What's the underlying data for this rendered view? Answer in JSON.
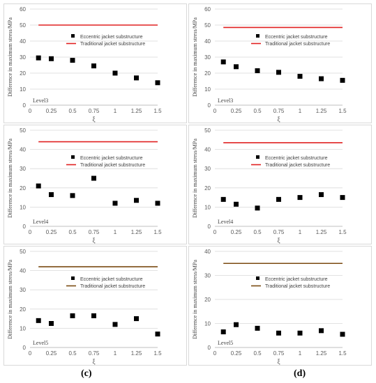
{
  "figure": {
    "col_labels": [
      "(c)",
      "(d)"
    ]
  },
  "legend_labels": {
    "eccentric": "Eccentric jacket substructure",
    "traditional": "Traditional jacket substructure"
  },
  "chart_data": [
    {
      "id": "c-level3",
      "type": "scatter",
      "level_label": "Level3",
      "xlabel": "ξ",
      "ylabel": "Difference in maximum stress/MPa",
      "xlim": [
        0,
        1.5
      ],
      "ylim": [
        0,
        60
      ],
      "y_step": 10,
      "x_ticks": [
        "0",
        "0.25",
        "0.5",
        "0.75",
        "1",
        "1.25",
        "1.5"
      ],
      "grid": true,
      "legend": "right",
      "traditional_color": "#e02020",
      "series": [
        {
          "name": "Eccentric jacket substructure",
          "x": [
            0.1,
            0.25,
            0.5,
            0.75,
            1.0,
            1.25,
            1.5
          ],
          "values": [
            29.5,
            29.0,
            28.0,
            24.5,
            20.0,
            17.0,
            14.0
          ]
        },
        {
          "name": "Traditional jacket substructure",
          "x": [
            0.1,
            1.5
          ],
          "values": [
            50,
            50
          ]
        }
      ]
    },
    {
      "id": "d-level3",
      "type": "scatter",
      "level_label": "Level3",
      "xlabel": "ξ",
      "ylabel": "Difference in maximum stress/MPa",
      "xlim": [
        0,
        1.5
      ],
      "ylim": [
        0,
        60
      ],
      "y_step": 10,
      "x_ticks": [
        "0",
        "0.25",
        "0.5",
        "0.75",
        "1",
        "1.25",
        "1.5"
      ],
      "grid": true,
      "legend": "right",
      "traditional_color": "#e02020",
      "series": [
        {
          "name": "Eccentric jacket substructure",
          "x": [
            0.1,
            0.25,
            0.5,
            0.75,
            1.0,
            1.25,
            1.5
          ],
          "values": [
            27.0,
            24.0,
            21.5,
            20.5,
            18.0,
            16.5,
            15.5
          ]
        },
        {
          "name": "Traditional jacket substructure",
          "x": [
            0.1,
            1.5
          ],
          "values": [
            48.5,
            48.5
          ]
        }
      ]
    },
    {
      "id": "c-level4",
      "type": "scatter",
      "level_label": "Level4",
      "xlabel": "ξ",
      "ylabel": "Difference in maximum stress/MPa",
      "xlim": [
        0,
        1.5
      ],
      "ylim": [
        0,
        50
      ],
      "y_step": 10,
      "x_ticks": [
        "0",
        "0.25",
        "0.5",
        "0.75",
        "1",
        "1.25",
        "1.5"
      ],
      "grid": true,
      "legend": "right",
      "traditional_color": "#e02020",
      "series": [
        {
          "name": "Eccentric jacket substructure",
          "x": [
            0.1,
            0.25,
            0.5,
            0.75,
            1.0,
            1.25,
            1.5
          ],
          "values": [
            21.0,
            16.5,
            16.0,
            25.0,
            12.0,
            13.5,
            12.0
          ]
        },
        {
          "name": "Traditional jacket substructure",
          "x": [
            0.1,
            1.5
          ],
          "values": [
            44,
            44
          ]
        }
      ]
    },
    {
      "id": "d-level4",
      "type": "scatter",
      "level_label": "Level4",
      "xlabel": "ξ",
      "ylabel": "Difference in maximum stress/MPa",
      "xlim": [
        0,
        1.5
      ],
      "ylim": [
        0,
        50
      ],
      "y_step": 10,
      "x_ticks": [
        "0",
        "0.25",
        "0.5",
        "0.75",
        "1",
        "1.25",
        "1.5"
      ],
      "grid": true,
      "legend": "right",
      "traditional_color": "#e02020",
      "series": [
        {
          "name": "Eccentric jacket substructure",
          "x": [
            0.1,
            0.25,
            0.5,
            0.75,
            1.0,
            1.25,
            1.5
          ],
          "values": [
            14.0,
            11.5,
            9.5,
            14.0,
            15.0,
            16.5,
            15.0
          ]
        },
        {
          "name": "Traditional jacket substructure",
          "x": [
            0.1,
            1.5
          ],
          "values": [
            43.5,
            43.5
          ]
        }
      ]
    },
    {
      "id": "c-level5",
      "type": "scatter",
      "level_label": "Level5",
      "xlabel": "ξ",
      "ylabel": "Difference in maximum stress/MPa",
      "xlim": [
        0,
        1.5
      ],
      "ylim": [
        0,
        50
      ],
      "y_step": 10,
      "x_ticks": [
        "0",
        "0.25",
        "0.5",
        "0.75",
        "1",
        "1.25",
        "1.5"
      ],
      "grid": true,
      "legend": "right",
      "traditional_color": "#7a4a10",
      "series": [
        {
          "name": "Eccentric jacket substructure",
          "x": [
            0.1,
            0.25,
            0.5,
            0.75,
            1.0,
            1.25,
            1.5
          ],
          "values": [
            14.0,
            12.5,
            16.5,
            16.5,
            12.0,
            15.0,
            7.0
          ]
        },
        {
          "name": "Traditional jacket substructure",
          "x": [
            0.1,
            1.5
          ],
          "values": [
            42,
            42
          ]
        }
      ]
    },
    {
      "id": "d-level5",
      "type": "scatter",
      "level_label": "Level5",
      "xlabel": "ξ",
      "ylabel": "Difference in maximum stress/MPa",
      "xlim": [
        0,
        1.5
      ],
      "ylim": [
        0,
        40
      ],
      "y_step": 10,
      "x_ticks": [
        "0",
        "0.25",
        "0.5",
        "0.75",
        "1",
        "1.25",
        "1.5"
      ],
      "grid": true,
      "legend": "right",
      "traditional_color": "#7a4a10",
      "series": [
        {
          "name": "Eccentric jacket substructure",
          "x": [
            0.1,
            0.25,
            0.5,
            0.75,
            1.0,
            1.25,
            1.5
          ],
          "values": [
            6.5,
            9.5,
            8.0,
            6.0,
            6.0,
            7.0,
            5.5
          ]
        },
        {
          "name": "Traditional jacket substructure",
          "x": [
            0.1,
            1.5
          ],
          "values": [
            35,
            35
          ]
        }
      ]
    }
  ]
}
